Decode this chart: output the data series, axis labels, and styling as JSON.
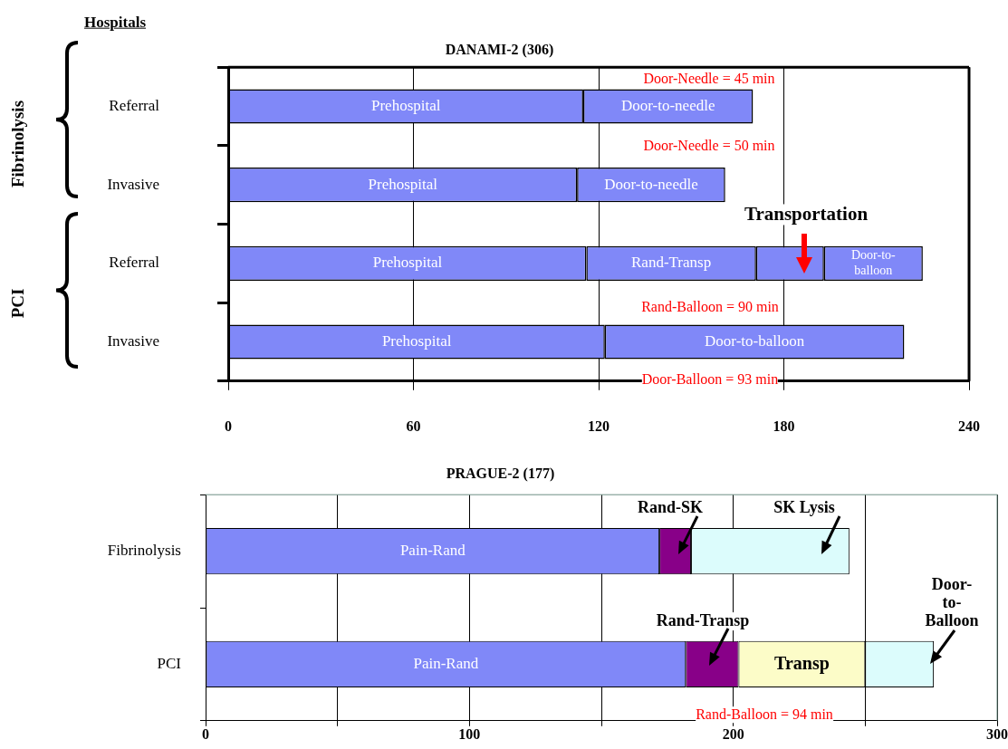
{
  "chart_data": [
    {
      "type": "bar",
      "orientation": "horizontal",
      "stacked": true,
      "title": "DANAMI-2 (306)",
      "ylabel": "Hospitals",
      "categories": [
        "Referral",
        "Invasive",
        "Referral",
        "Invasive"
      ],
      "series": [
        {
          "color": "#8088f8",
          "values": [
            115,
            113,
            116,
            122
          ],
          "value_labels": [
            "Prehospital",
            "Prehospital",
            "Prehospital",
            "Prehospital"
          ]
        },
        {
          "color": "#8088f8",
          "values": [
            55,
            48,
            55,
            97
          ],
          "value_labels": [
            "Door-to-needle",
            "Door-to-needle",
            "Rand-Transp",
            "Door-to-balloon"
          ]
        },
        {
          "color": "#8088f8",
          "values": [
            null,
            null,
            22,
            null
          ]
        },
        {
          "color": "#8088f8",
          "values": [
            null,
            null,
            32,
            null
          ],
          "value_labels": [
            null,
            null,
            "Door-to-\nballoon",
            null
          ]
        }
      ],
      "xlim": [
        0,
        240
      ],
      "xticks": [
        0,
        60,
        120,
        180,
        240
      ],
      "grid": "x",
      "annotations": [
        "Fibrinolysis",
        "PCI",
        "Door-Needle = 45 min",
        "Door-Needle = 50 min",
        "Transportation",
        "Rand-Balloon = 90 min",
        "Door-Balloon = 93 min"
      ]
    },
    {
      "type": "bar",
      "orientation": "horizontal",
      "stacked": true,
      "title": "PRAGUE-2 (177)",
      "categories": [
        "Fibrinolysis",
        "PCI"
      ],
      "series": [
        {
          "color": "#8088f8",
          "values": [
            172,
            182
          ],
          "value_labels": [
            "Pain-Rand",
            "Pain-Rand"
          ]
        },
        {
          "color": "#880088",
          "values": [
            12,
            20
          ]
        },
        {
          "colors": [
            "#dcfcfc",
            "#fcfcc8"
          ],
          "values": [
            60,
            48
          ],
          "value_labels": [
            null,
            "Transp"
          ]
        },
        {
          "color": "#dcfcfc",
          "values": [
            null,
            26
          ]
        }
      ],
      "xlim": [
        0,
        300
      ],
      "xticks": [
        0,
        {
          "value": 50,
          "label": null
        },
        100,
        {
          "value": 150,
          "label": null
        },
        200,
        {
          "value": 250,
          "label": null
        },
        300
      ],
      "grid": "x",
      "annotations": [
        "Rand-SK",
        "SK Lysis",
        "Rand-Transp",
        "Door-to-\nBalloon",
        "Rand-Balloon = 94 min"
      ]
    }
  ]
}
